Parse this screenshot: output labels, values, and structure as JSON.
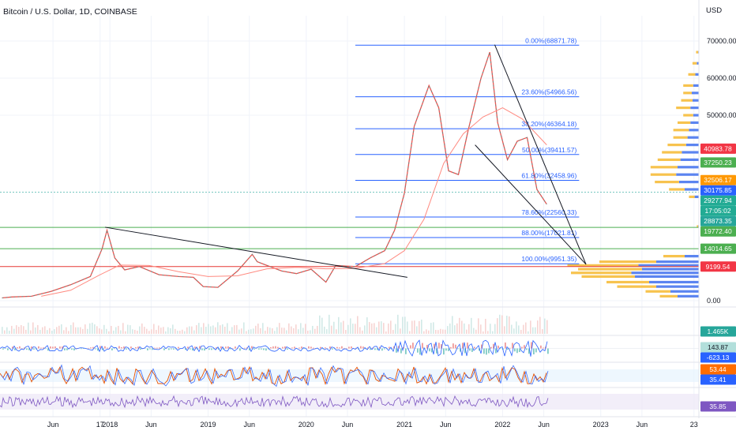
{
  "header": {
    "title": "Bitcoin / U.S. Dollar, 1D, COINBASE",
    "currency": "USD"
  },
  "colors": {
    "candle_up": "#26a69a",
    "candle_down": "#ef5350",
    "fib_line": "#2962ff",
    "fib_text": "#2962ff",
    "support_green": "#4caf50",
    "resistance_red": "#e53935",
    "volume_profile_up": "#f7c34e",
    "volume_profile_down": "#5b84f0",
    "rsi": "#7e57c2",
    "stoch_k": "#e65100",
    "stoch_d": "#2962ff",
    "macd_line": "#2962ff",
    "macd_signal": "#ff6d00"
  },
  "chart_data": {
    "type": "line",
    "title": "Bitcoin / U.S. Dollar, 1D, COINBASE",
    "ylabel": "USD",
    "ylim": [
      0,
      72000
    ],
    "price_ticks": [
      {
        "label": "70000.00",
        "value": 70000
      },
      {
        "label": "60000.00",
        "value": 60000
      },
      {
        "label": "50000.00",
        "value": 50000
      },
      {
        "label": "0.00",
        "value": 0
      }
    ],
    "time_ticks": [
      {
        "label": "17",
        "t": 2017.9
      },
      {
        "label": "Jun",
        "t": 2018.42
      },
      {
        "label": "2018",
        "t": 2018.0
      },
      {
        "label": "Jun",
        "t": 2017.42
      },
      {
        "label": "2019",
        "t": 2019.0
      },
      {
        "label": "Jun",
        "t": 2019.42
      },
      {
        "label": "2020",
        "t": 2020.0
      },
      {
        "label": "Jun",
        "t": 2020.42
      },
      {
        "label": "2021",
        "t": 2021.0
      },
      {
        "label": "Jun",
        "t": 2021.42
      },
      {
        "label": "2022",
        "t": 2022.0
      },
      {
        "label": "Jun",
        "t": 2022.42
      },
      {
        "label": "2023",
        "t": 2023.0
      },
      {
        "label": "Jun",
        "t": 2023.42
      },
      {
        "label": "23",
        "t": 2023.95
      }
    ],
    "series": [
      {
        "name": "",
        "t": [
          2016.9,
          2017.0,
          2017.2,
          2017.4,
          2017.6,
          2017.8,
          2017.92,
          2017.97,
          2018.05,
          2018.15,
          2018.3,
          2018.5,
          2018.7,
          2018.85,
          2018.95,
          2019.1,
          2019.3,
          2019.45,
          2019.5,
          2019.6,
          2019.75,
          2019.9,
          2020.05,
          2020.2,
          2020.3,
          2020.5,
          2020.65,
          2020.8,
          2020.9,
          2021.0,
          2021.1,
          2021.25,
          2021.35,
          2021.45,
          2021.55,
          2021.65,
          2021.78,
          2021.87,
          2021.95,
          2022.05,
          2022.15,
          2022.25,
          2022.35,
          2022.45
        ],
        "values": [
          750,
          1000,
          1200,
          2500,
          4300,
          6500,
          14000,
          19000,
          11500,
          8300,
          9200,
          7000,
          6500,
          6300,
          3800,
          3600,
          8000,
          12500,
          10500,
          9500,
          8000,
          7300,
          8500,
          5000,
          9500,
          9200,
          11500,
          13500,
          19000,
          29000,
          47000,
          58000,
          52000,
          35000,
          34000,
          46000,
          60000,
          67000,
          48000,
          38000,
          43000,
          44000,
          30000,
          26000
        ]
      },
      {
        "name": "",
        "t": [
          2017.3,
          2017.6,
          2017.9,
          2018.1,
          2018.4,
          2018.7,
          2019.0,
          2019.3,
          2019.6,
          2019.9,
          2020.2,
          2020.5,
          2020.8,
          2021.0,
          2021.2,
          2021.4,
          2021.6,
          2021.8,
          2022.0,
          2022.2,
          2022.45
        ],
        "values": [
          1200,
          2800,
          7000,
          9600,
          9500,
          7800,
          6500,
          6700,
          8600,
          9000,
          8600,
          8700,
          10000,
          13500,
          22000,
          37000,
          45000,
          49500,
          52000,
          49000,
          42000
        ]
      }
    ],
    "trendlines": [
      {
        "name": "",
        "t": [
          2017.95,
          2021.03
        ],
        "values": [
          19800,
          6300
        ]
      },
      {
        "name": "",
        "t": [
          2021.92,
          2022.85
        ],
        "values": [
          69000,
          9800
        ]
      },
      {
        "name": "",
        "t": [
          2021.72,
          2022.85
        ],
        "values": [
          42000,
          9800
        ]
      }
    ],
    "fib_levels": [
      {
        "label": "0.00%(68871.78)",
        "value": 68871.78
      },
      {
        "label": "23.60%(54966.56)",
        "value": 54966.56
      },
      {
        "label": "38.20%(46364.18)",
        "value": 46364.18
      },
      {
        "label": "50.00%(39411.57)",
        "value": 39411.57
      },
      {
        "label": "61.80%(32458.96)",
        "value": 32458.96
      },
      {
        "label": "78.60%(22560.33)",
        "value": 22560.33
      },
      {
        "label": "88.00%(17021.81)",
        "value": 17021.81
      },
      {
        "label": "100.00%(9951.35)",
        "value": 9951.35
      }
    ],
    "fib_t_range": [
      2020.5,
      2022.78
    ],
    "horizontal_levels": [
      {
        "name": "",
        "value": 19772.4,
        "kind": "green"
      },
      {
        "name": "",
        "value": 14014.65,
        "kind": "green"
      },
      {
        "name": "",
        "value": 9199.54,
        "kind": "red"
      },
      {
        "name": "",
        "value": 29277.94,
        "kind": "teal"
      }
    ],
    "price_badges": [
      {
        "label": "40983.78",
        "value": 40983.78,
        "color": "#f23645"
      },
      {
        "label": "37250.23",
        "value": 37250.23,
        "color": "#4caf50"
      },
      {
        "label": "32506.17",
        "value": 32506.17,
        "color": "#ff9800"
      },
      {
        "label": "30175.85",
        "value": 30175.85,
        "color": "#2962ff"
      },
      {
        "label": "29277.94",
        "value": 29277.94,
        "color": "#22ab94"
      },
      {
        "label": "17:05:02",
        "value": 27300,
        "color": "#22ab94"
      },
      {
        "label": "28873.35",
        "value": 24900,
        "color": "#26a69a"
      },
      {
        "label": "19772.40",
        "value": 19772.4,
        "color": "#4caf50"
      },
      {
        "label": "14014.65",
        "value": 14014.65,
        "color": "#4caf50"
      },
      {
        "label": "9199.54",
        "value": 9199.54,
        "color": "#f23645"
      }
    ],
    "volume_profile": {
      "bins": [
        {
          "price": 67000,
          "up": 3,
          "down": 1
        },
        {
          "price": 64000,
          "up": 6,
          "down": 3
        },
        {
          "price": 61000,
          "up": 10,
          "down": 5
        },
        {
          "price": 58000,
          "up": 14,
          "down": 8
        },
        {
          "price": 56000,
          "up": 12,
          "down": 10
        },
        {
          "price": 54000,
          "up": 16,
          "down": 9
        },
        {
          "price": 52000,
          "up": 20,
          "down": 12
        },
        {
          "price": 50000,
          "up": 14,
          "down": 8
        },
        {
          "price": 48000,
          "up": 18,
          "down": 12
        },
        {
          "price": 46000,
          "up": 22,
          "down": 14
        },
        {
          "price": 44000,
          "up": 20,
          "down": 16
        },
        {
          "price": 42000,
          "up": 26,
          "down": 18
        },
        {
          "price": 40000,
          "up": 28,
          "down": 24
        },
        {
          "price": 38000,
          "up": 32,
          "down": 26
        },
        {
          "price": 36000,
          "up": 38,
          "down": 30
        },
        {
          "price": 34000,
          "up": 36,
          "down": 32
        },
        {
          "price": 32000,
          "up": 34,
          "down": 28
        },
        {
          "price": 30000,
          "up": 22,
          "down": 20
        },
        {
          "price": 28000,
          "up": 8,
          "down": 6
        },
        {
          "price": 20000,
          "up": 2,
          "down": 1
        },
        {
          "price": 12000,
          "up": 30,
          "down": 20
        },
        {
          "price": 10500,
          "up": 80,
          "down": 60
        },
        {
          "price": 9500,
          "up": 100,
          "down": 85
        },
        {
          "price": 8500,
          "up": 90,
          "down": 80
        },
        {
          "price": 7500,
          "up": 85,
          "down": 95
        },
        {
          "price": 6500,
          "up": 75,
          "down": 90
        },
        {
          "price": 5000,
          "up": 60,
          "down": 70
        },
        {
          "price": 3800,
          "up": 55,
          "down": 60
        },
        {
          "price": 2500,
          "up": 35,
          "down": 40
        },
        {
          "price": 1200,
          "up": 25,
          "down": 30
        }
      ]
    },
    "panes": [
      {
        "name": "",
        "badges": [
          {
            "label": "1.465K",
            "color": "#26a69a"
          }
        ]
      },
      {
        "name": "",
        "badges": [
          {
            "label": "143.87",
            "color": "#b2dfdb"
          },
          {
            "label": "-623.13",
            "color": "#2962ff"
          }
        ]
      },
      {
        "name": "",
        "badges": [
          {
            "label": "53.44",
            "color": "#ff6d00"
          },
          {
            "label": "35.41",
            "color": "#2962ff"
          }
        ]
      },
      {
        "name": "",
        "badges": [
          {
            "label": "35.85",
            "color": "#7e57c2"
          }
        ]
      }
    ],
    "grid": true
  }
}
